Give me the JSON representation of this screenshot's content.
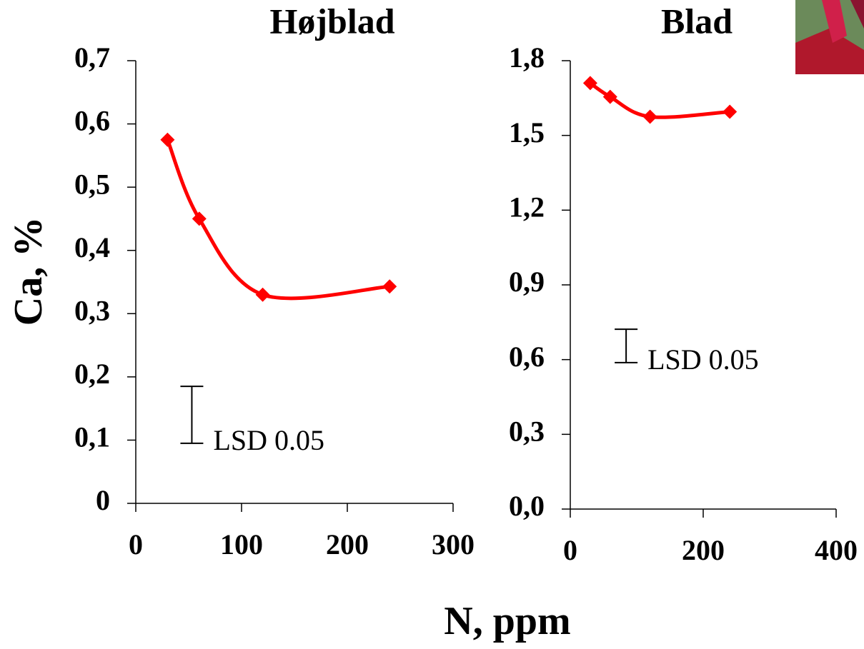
{
  "chart_data": [
    {
      "type": "line",
      "title": "Højblad",
      "x": [
        30,
        60,
        120,
        240
      ],
      "series": [
        {
          "name": "Højblad",
          "color": "#ff0000",
          "values": [
            0.575,
            0.45,
            0.33,
            0.343
          ]
        }
      ],
      "xlim": [
        0,
        300
      ],
      "xticks": [
        0,
        100,
        200,
        300
      ],
      "ylim": [
        0,
        0.7
      ],
      "yticks": [
        0,
        {
          "value": 0.1,
          "label": "0,1"
        },
        {
          "value": 0.2,
          "label": "0,2"
        },
        {
          "value": 0.3,
          "label": "0,3"
        },
        {
          "value": 0.4,
          "label": "0,4"
        },
        {
          "value": 0.5,
          "label": "0,5"
        },
        {
          "value": 0.6,
          "label": "0,6"
        },
        {
          "value": 0.7,
          "label": "0,7"
        }
      ],
      "lsd": {
        "label": "LSD 0.05",
        "x": 53,
        "low": 0.095,
        "high": 0.185
      }
    },
    {
      "type": "line",
      "title": "Blad",
      "x": [
        30,
        60,
        120,
        240
      ],
      "series": [
        {
          "name": "Blad",
          "color": "#ff0000",
          "values": [
            1.71,
            1.655,
            1.575,
            1.595
          ]
        }
      ],
      "xlim": [
        0,
        400
      ],
      "xticks": [
        0,
        200,
        400
      ],
      "ylim": [
        0,
        1.8
      ],
      "yticks": [
        {
          "value": 0,
          "label": "0,0"
        },
        {
          "value": 0.3,
          "label": "0,3"
        },
        {
          "value": 0.6,
          "label": "0,6"
        },
        {
          "value": 0.9,
          "label": "0,9"
        },
        {
          "value": 1.2,
          "label": "1,2"
        },
        {
          "value": 1.5,
          "label": "1,5"
        },
        {
          "value": 1.8,
          "label": "1,8"
        }
      ],
      "lsd": {
        "label": "LSD 0.05",
        "x": 84,
        "low": 0.588,
        "high": 0.722
      }
    }
  ],
  "axis_labels": {
    "y": "Ca, %",
    "x": "N, ppm"
  }
}
